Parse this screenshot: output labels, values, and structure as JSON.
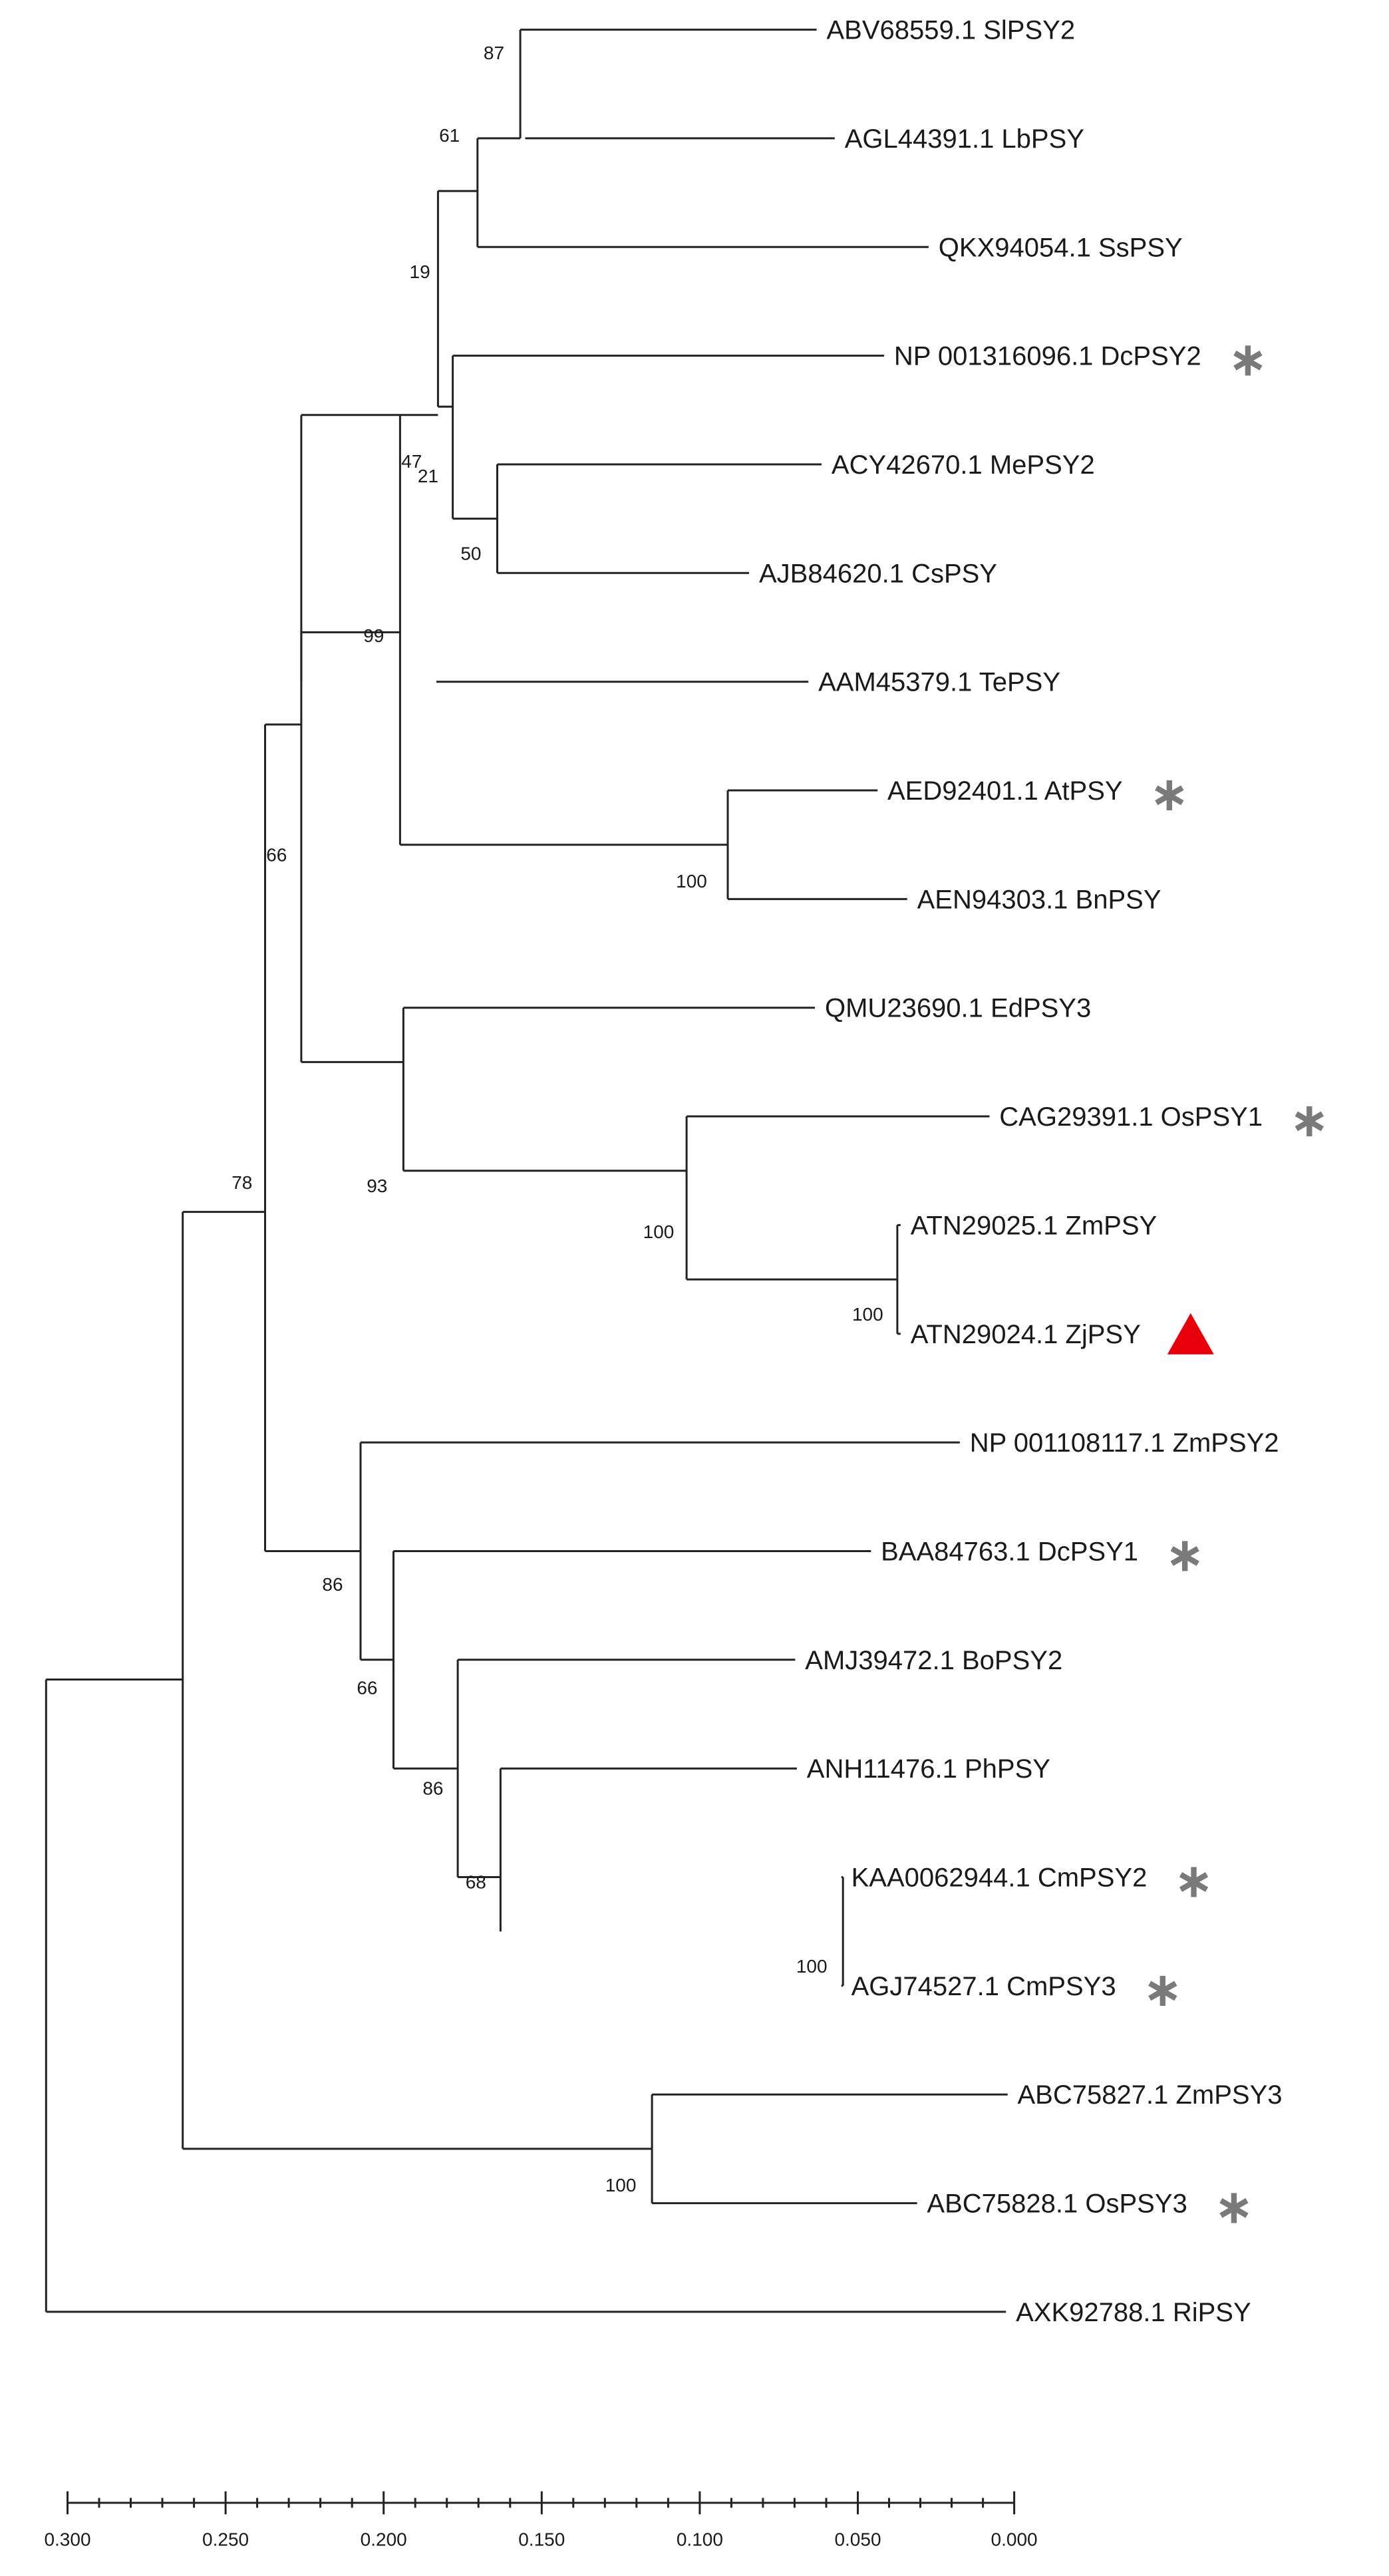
{
  "leaves": [
    {
      "id": "L1",
      "label": "ABV68559.1 SlPSY2"
    },
    {
      "id": "L2",
      "label": "AGL44391.1 LbPSY"
    },
    {
      "id": "L3",
      "label": "QKX94054.1 SsPSY"
    },
    {
      "id": "L4",
      "label": "NP 001316096.1 DcPSY2",
      "marker": "star"
    },
    {
      "id": "L5",
      "label": "ACY42670.1 MePSY2"
    },
    {
      "id": "L6",
      "label": "AJB84620.1 CsPSY"
    },
    {
      "id": "L7",
      "label": "AAM45379.1 TePSY"
    },
    {
      "id": "L8",
      "label": "AED92401.1 AtPSY",
      "marker": "star"
    },
    {
      "id": "L9",
      "label": "AEN94303.1 BnPSY"
    },
    {
      "id": "L10",
      "label": "QMU23690.1 EdPSY3"
    },
    {
      "id": "L11",
      "label": "CAG29391.1 OsPSY1",
      "marker": "star"
    },
    {
      "id": "L12",
      "label": "ATN29025.1 ZmPSY"
    },
    {
      "id": "L13",
      "label": "ATN29024.1 ZjPSY",
      "marker": "triangle"
    },
    {
      "id": "L14",
      "label": "NP 001108117.1 ZmPSY2"
    },
    {
      "id": "L15",
      "label": "BAA84763.1 DcPSY1",
      "marker": "star"
    },
    {
      "id": "L16",
      "label": "AMJ39472.1 BoPSY2"
    },
    {
      "id": "L17",
      "label": "ANH11476.1 PhPSY"
    },
    {
      "id": "L18",
      "label": "KAA0062944.1 CmPSY2",
      "marker": "star"
    },
    {
      "id": "L19",
      "label": "AGJ74527.1 CmPSY3",
      "marker": "star"
    },
    {
      "id": "L20",
      "label": "ABC75827.1 ZmPSY3"
    },
    {
      "id": "L21",
      "label": "ABC75828.1 OsPSY3",
      "marker": "star"
    },
    {
      "id": "L22",
      "label": "AXK92788.1 RiPSY"
    }
  ],
  "bootstrap": [
    {
      "node": "n87",
      "value": "87"
    },
    {
      "node": "n61",
      "value": "61"
    },
    {
      "node": "n19",
      "value": "19"
    },
    {
      "node": "n47",
      "value": "47"
    },
    {
      "node": "n21",
      "value": "21"
    },
    {
      "node": "n50",
      "value": "50"
    },
    {
      "node": "n99",
      "value": "99"
    },
    {
      "node": "n100a",
      "value": "100"
    },
    {
      "node": "n66a",
      "value": "66"
    },
    {
      "node": "n93",
      "value": "93"
    },
    {
      "node": "n100b",
      "value": "100"
    },
    {
      "node": "n100c",
      "value": "100"
    },
    {
      "node": "n78",
      "value": "78"
    },
    {
      "node": "n86a",
      "value": "86"
    },
    {
      "node": "n66b",
      "value": "66"
    },
    {
      "node": "n86b",
      "value": "86"
    },
    {
      "node": "n68",
      "value": "68"
    },
    {
      "node": "n100d",
      "value": "100"
    },
    {
      "node": "n100e",
      "value": "100"
    }
  ],
  "scale": {
    "ticks": [
      "0.300",
      "0.250",
      "0.200",
      "0.150",
      "0.100",
      "0.050",
      "0.000"
    ]
  },
  "colors": {
    "star": "#7a7a7a",
    "triangle": "#e8000b",
    "line": "#222222"
  }
}
